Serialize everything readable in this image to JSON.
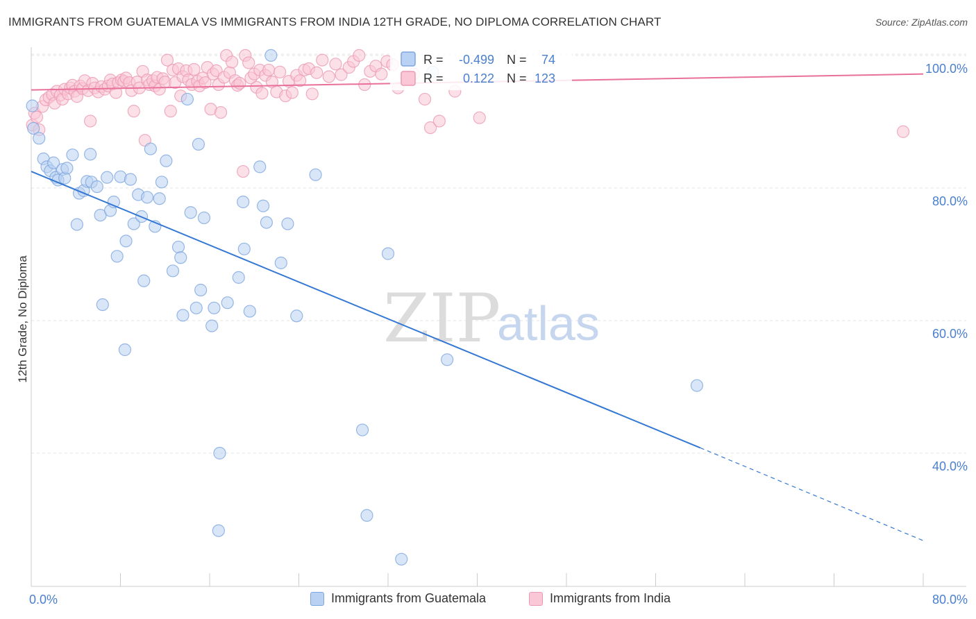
{
  "title": "IMMIGRANTS FROM GUATEMALA VS IMMIGRANTS FROM INDIA 12TH GRADE, NO DIPLOMA CORRELATION CHART",
  "source": "Source: ZipAtlas.com",
  "watermark": {
    "zip": "ZIP",
    "atlas": "atlas"
  },
  "colors": {
    "guatemala": "#4a86d8",
    "guatemala_fill": "#b9d1f2",
    "india": "#e8709a",
    "india_fill": "#f9c7d6",
    "axis_text": "#4a7fcf",
    "grid": "#e3e3e3"
  },
  "chart_data": {
    "type": "scatter",
    "ylabel": "12th Grade, No Diploma",
    "xlabel": "",
    "xlim": [
      0,
      80
    ],
    "ylim": [
      20,
      104
    ],
    "x_tick_labels": [
      "0.0%",
      "80.0%"
    ],
    "y_ticks": [
      40,
      60,
      80,
      100
    ],
    "y_tick_labels": [
      "40.0%",
      "60.0%",
      "80.0%",
      "100.0%"
    ],
    "grid": true,
    "legend_top": {
      "r_label": "R =",
      "n_label": "N =",
      "rows": [
        {
          "series": "guatemala",
          "r": "-0.499",
          "n": "74"
        },
        {
          "series": "india",
          "r": "0.122",
          "n": "123"
        }
      ]
    },
    "series": [
      {
        "name": "Immigrants from Guatemala",
        "key": "guatemala",
        "trend": {
          "x_start": 0,
          "y_start": 82.5,
          "x_solid_end": 60,
          "y_solid_end": 40.8,
          "x_end": 80,
          "y_end": 26.8
        },
        "points": [
          [
            0.1,
            92.4
          ],
          [
            0.2,
            89.0
          ],
          [
            0.7,
            87.5
          ],
          [
            1.1,
            84.4
          ],
          [
            1.4,
            83.2
          ],
          [
            1.7,
            82.6
          ],
          [
            2.0,
            83.8
          ],
          [
            2.2,
            81.6
          ],
          [
            2.4,
            81.2
          ],
          [
            2.8,
            82.8
          ],
          [
            3.0,
            81.5
          ],
          [
            3.2,
            83.0
          ],
          [
            3.7,
            85.0
          ],
          [
            4.1,
            74.5
          ],
          [
            4.3,
            79.2
          ],
          [
            4.7,
            79.6
          ],
          [
            5.0,
            81.0
          ],
          [
            5.3,
            85.1
          ],
          [
            5.4,
            80.9
          ],
          [
            5.9,
            80.2
          ],
          [
            6.2,
            75.9
          ],
          [
            6.4,
            62.4
          ],
          [
            6.8,
            81.6
          ],
          [
            7.1,
            76.6
          ],
          [
            7.4,
            77.9
          ],
          [
            7.7,
            69.7
          ],
          [
            8.0,
            81.7
          ],
          [
            8.5,
            72.0
          ],
          [
            8.4,
            55.6
          ],
          [
            8.9,
            81.3
          ],
          [
            9.2,
            74.6
          ],
          [
            9.6,
            79.0
          ],
          [
            9.9,
            75.7
          ],
          [
            10.1,
            66.0
          ],
          [
            10.4,
            78.6
          ],
          [
            10.7,
            85.9
          ],
          [
            11.1,
            74.2
          ],
          [
            11.5,
            78.4
          ],
          [
            11.7,
            80.9
          ],
          [
            12.1,
            84.1
          ],
          [
            12.7,
            67.5
          ],
          [
            13.2,
            71.1
          ],
          [
            13.4,
            69.5
          ],
          [
            13.6,
            60.8
          ],
          [
            14.0,
            93.4
          ],
          [
            14.3,
            76.3
          ],
          [
            14.8,
            61.9
          ],
          [
            15.0,
            86.6
          ],
          [
            15.2,
            64.6
          ],
          [
            15.5,
            75.5
          ],
          [
            16.2,
            59.2
          ],
          [
            16.4,
            61.9
          ],
          [
            16.8,
            28.3
          ],
          [
            16.9,
            40.0
          ],
          [
            17.6,
            62.7
          ],
          [
            18.6,
            66.5
          ],
          [
            19.1,
            70.8
          ],
          [
            19.0,
            77.9
          ],
          [
            19.6,
            61.4
          ],
          [
            20.5,
            83.2
          ],
          [
            20.8,
            77.3
          ],
          [
            21.1,
            74.8
          ],
          [
            21.5,
            100.0
          ],
          [
            22.4,
            68.7
          ],
          [
            23.0,
            74.6
          ],
          [
            23.8,
            60.7
          ],
          [
            25.5,
            82.0
          ],
          [
            29.7,
            43.5
          ],
          [
            30.1,
            30.6
          ],
          [
            32.0,
            70.1
          ],
          [
            33.2,
            24.0
          ],
          [
            37.3,
            54.1
          ],
          [
            59.7,
            50.2
          ],
          [
            36.0,
            97.5
          ]
        ]
      },
      {
        "name": "Immigrants from India",
        "key": "india",
        "trend": {
          "x_start": 0,
          "y_start": 94.8,
          "x_end": 80,
          "y_end": 97.2
        },
        "points": [
          [
            0.1,
            89.5
          ],
          [
            0.3,
            91.3
          ],
          [
            0.5,
            90.7
          ],
          [
            0.7,
            88.8
          ],
          [
            1.0,
            92.3
          ],
          [
            1.3,
            93.3
          ],
          [
            1.6,
            93.7
          ],
          [
            1.9,
            94.1
          ],
          [
            2.1,
            92.8
          ],
          [
            2.3,
            94.6
          ],
          [
            2.6,
            94.0
          ],
          [
            2.8,
            93.4
          ],
          [
            3.0,
            94.9
          ],
          [
            3.3,
            94.2
          ],
          [
            3.5,
            95.1
          ],
          [
            3.7,
            95.5
          ],
          [
            3.9,
            94.6
          ],
          [
            4.1,
            93.8
          ],
          [
            4.4,
            95.4
          ],
          [
            4.6,
            95.0
          ],
          [
            4.8,
            96.2
          ],
          [
            5.1,
            94.7
          ],
          [
            5.3,
            90.1
          ],
          [
            5.5,
            95.8
          ],
          [
            5.7,
            95.1
          ],
          [
            6.0,
            94.5
          ],
          [
            6.3,
            95.3
          ],
          [
            6.6,
            94.9
          ],
          [
            6.9,
            95.4
          ],
          [
            7.1,
            96.3
          ],
          [
            7.3,
            95.7
          ],
          [
            7.6,
            94.4
          ],
          [
            7.8,
            95.9
          ],
          [
            8.1,
            96.3
          ],
          [
            8.3,
            96.1
          ],
          [
            8.5,
            96.6
          ],
          [
            8.8,
            95.9
          ],
          [
            9.0,
            94.7
          ],
          [
            9.2,
            91.6
          ],
          [
            9.5,
            96.0
          ],
          [
            9.7,
            95.1
          ],
          [
            10.0,
            97.6
          ],
          [
            10.2,
            87.2
          ],
          [
            10.4,
            96.3
          ],
          [
            10.6,
            95.6
          ],
          [
            10.9,
            96.2
          ],
          [
            11.1,
            95.4
          ],
          [
            11.3,
            96.7
          ],
          [
            11.5,
            94.9
          ],
          [
            11.8,
            96.5
          ],
          [
            12.0,
            96.0
          ],
          [
            12.2,
            99.3
          ],
          [
            12.5,
            91.6
          ],
          [
            12.7,
            97.8
          ],
          [
            12.9,
            95.9
          ],
          [
            13.2,
            98.0
          ],
          [
            13.4,
            93.9
          ],
          [
            13.6,
            96.8
          ],
          [
            13.9,
            97.7
          ],
          [
            14.1,
            96.3
          ],
          [
            14.4,
            95.6
          ],
          [
            14.6,
            97.9
          ],
          [
            14.9,
            96.1
          ],
          [
            15.1,
            95.4
          ],
          [
            15.4,
            96.6
          ],
          [
            15.6,
            95.9
          ],
          [
            15.8,
            98.2
          ],
          [
            16.1,
            91.9
          ],
          [
            16.3,
            97.2
          ],
          [
            16.6,
            97.7
          ],
          [
            16.8,
            95.6
          ],
          [
            17.0,
            91.4
          ],
          [
            17.3,
            96.7
          ],
          [
            17.5,
            100.0
          ],
          [
            17.8,
            97.4
          ],
          [
            18.0,
            99.0
          ],
          [
            18.3,
            96.2
          ],
          [
            18.5,
            95.5
          ],
          [
            18.7,
            95.8
          ],
          [
            19.0,
            82.5
          ],
          [
            19.2,
            100.0
          ],
          [
            19.5,
            98.9
          ],
          [
            19.7,
            96.6
          ],
          [
            20.0,
            97.2
          ],
          [
            20.2,
            95.2
          ],
          [
            20.5,
            97.8
          ],
          [
            20.7,
            94.3
          ],
          [
            21.0,
            97.0
          ],
          [
            21.3,
            97.8
          ],
          [
            21.6,
            96.0
          ],
          [
            22.0,
            94.5
          ],
          [
            22.3,
            97.5
          ],
          [
            22.8,
            93.9
          ],
          [
            23.1,
            96.1
          ],
          [
            23.4,
            94.4
          ],
          [
            23.8,
            97.0
          ],
          [
            24.1,
            96.2
          ],
          [
            24.5,
            97.8
          ],
          [
            24.9,
            98.0
          ],
          [
            25.2,
            94.2
          ],
          [
            25.6,
            97.4
          ],
          [
            26.1,
            99.3
          ],
          [
            26.7,
            96.8
          ],
          [
            27.3,
            98.7
          ],
          [
            27.8,
            97.1
          ],
          [
            28.5,
            98.2
          ],
          [
            28.9,
            99.1
          ],
          [
            29.4,
            100.0
          ],
          [
            29.9,
            95.6
          ],
          [
            30.4,
            97.6
          ],
          [
            30.9,
            98.4
          ],
          [
            31.4,
            97.2
          ],
          [
            31.9,
            99.1
          ],
          [
            32.4,
            98.6
          ],
          [
            32.9,
            95.1
          ],
          [
            33.6,
            96.9
          ],
          [
            34.3,
            97.2
          ],
          [
            35.3,
            93.4
          ],
          [
            35.8,
            89.1
          ],
          [
            36.6,
            90.1
          ],
          [
            38.0,
            94.6
          ],
          [
            40.2,
            90.6
          ],
          [
            78.2,
            88.5
          ]
        ]
      }
    ]
  }
}
